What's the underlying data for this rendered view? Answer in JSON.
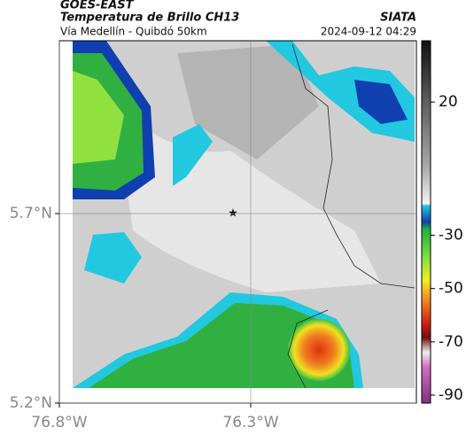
{
  "header": {
    "title": "GOES-EAST",
    "subtitle": "Temperatura de Brillo CH13",
    "source": "SIATA",
    "route": "Vía Medellín - Quibdó 50km",
    "datetime": "2024-09-12 04:29"
  },
  "map": {
    "xlim": [
      -76.8,
      -75.867
    ],
    "ylim": [
      5.2,
      6.156
    ],
    "xticks": [
      {
        "value": -76.8,
        "label": "76.8°W"
      },
      {
        "value": -76.3,
        "label": "76.3°W"
      }
    ],
    "yticks": [
      {
        "value": 5.7,
        "label": "5.7°N"
      },
      {
        "value": 5.2,
        "label": "5.2°N"
      }
    ],
    "grid": true
  },
  "colorbar": {
    "lim": [
      -93,
      43
    ],
    "ticks": [
      20,
      -30,
      -50,
      -70,
      -90
    ]
  }
}
